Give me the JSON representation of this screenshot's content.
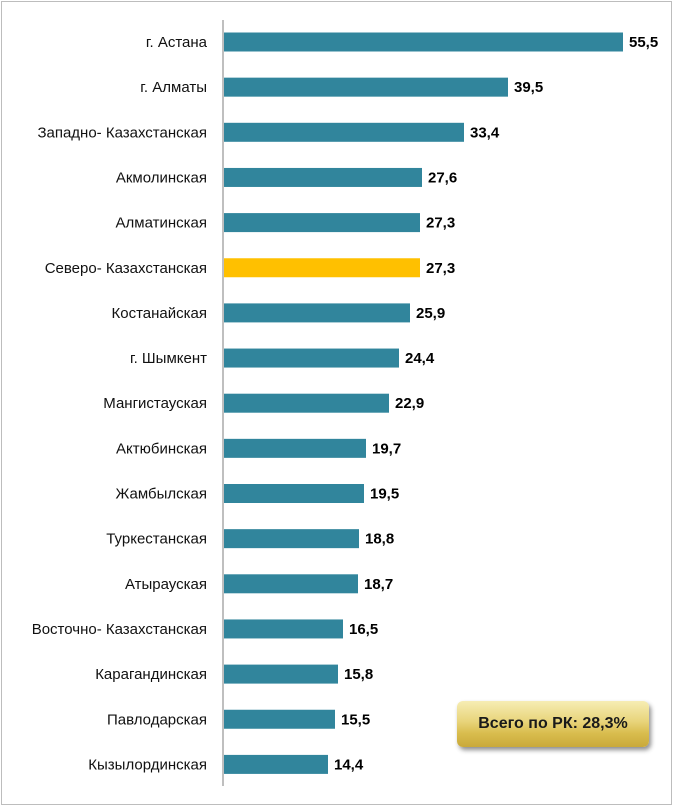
{
  "chart_data": {
    "type": "bar",
    "orientation": "horizontal",
    "categories": [
      "г. Астана",
      "г. Алматы",
      "Западно- Казахстанская",
      "Акмолинская",
      "Алматинская",
      "Северо- Казахстанская",
      "Костанайская",
      "г. Шымкент",
      "Мангистауская",
      "Актюбинская",
      "Жамбылская",
      "Туркестанская",
      "Атырауская",
      "Восточно- Казахстанская",
      "Карагандинская",
      "Павлодарская",
      "Кызылординская"
    ],
    "values": [
      55.5,
      39.5,
      33.4,
      27.6,
      27.3,
      27.3,
      25.9,
      24.4,
      22.9,
      19.7,
      19.5,
      18.8,
      18.7,
      16.5,
      15.8,
      15.5,
      14.4
    ],
    "value_labels": [
      "55,5",
      "39,5",
      "33,4",
      "27,6",
      "27,3",
      "27,3",
      "25,9",
      "24,4",
      "22,9",
      "19,7",
      "19,5",
      "18,8",
      "18,7",
      "16,5",
      "15,8",
      "15,5",
      "14,4"
    ],
    "highlight_category": "Северо- Казахстанская",
    "xlim": [
      0,
      55.5
    ],
    "grid": false,
    "colors": {
      "bar": "#31859c",
      "highlight": "#ffc000",
      "axis": "#7f7f7f"
    }
  },
  "summary": {
    "text": "Всего по РК: 28,3%"
  }
}
